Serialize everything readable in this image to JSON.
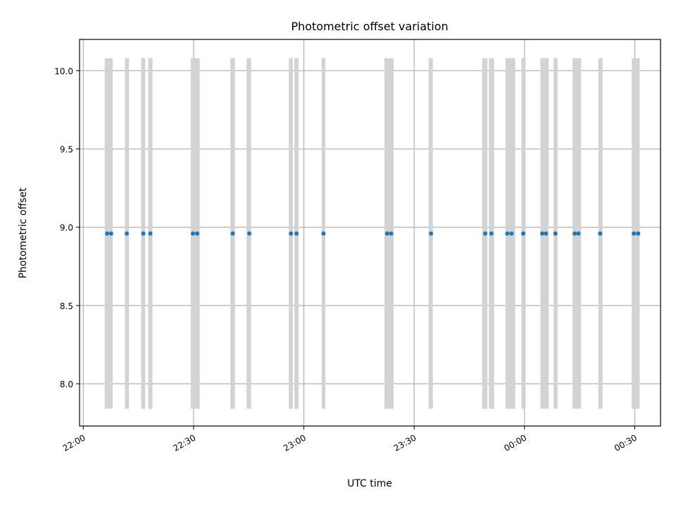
{
  "chart_data": {
    "type": "scatter",
    "title": "Photometric offset variation",
    "xlabel": "UTC time",
    "ylabel": "Photometric offset",
    "xlim": [
      "2023-01-01T21:59:00",
      "2023-01-02T00:37:00"
    ],
    "ylim": [
      7.73,
      10.2
    ],
    "x_ticks": [
      {
        "value": "2023-01-01T22:00:00",
        "label": "22:00"
      },
      {
        "value": "2023-01-01T22:30:00",
        "label": "22:30"
      },
      {
        "value": "2023-01-01T23:00:00",
        "label": "23:00"
      },
      {
        "value": "2023-01-01T23:30:00",
        "label": "23:30"
      },
      {
        "value": "2023-01-02T00:00:00",
        "label": "00:00"
      },
      {
        "value": "2023-01-02T00:30:00",
        "label": "00:30"
      }
    ],
    "y_ticks": [
      {
        "value": 8.0,
        "label": "8.0"
      },
      {
        "value": 8.5,
        "label": "8.5"
      },
      {
        "value": 9.0,
        "label": "9.0"
      },
      {
        "value": 9.5,
        "label": "9.5"
      },
      {
        "value": 10.0,
        "label": "10.0"
      }
    ],
    "grid": true,
    "band_range": [
      7.84,
      10.08
    ],
    "band_color": "#d3d3d3",
    "point_color": "#1f77b4",
    "series": [
      {
        "values": [
          {
            "x": "2023-01-01T22:06:30",
            "y": 8.96
          },
          {
            "x": "2023-01-01T22:07:35",
            "y": 8.96
          },
          {
            "x": "2023-01-01T22:11:50",
            "y": 8.96
          },
          {
            "x": "2023-01-01T22:16:20",
            "y": 8.96
          },
          {
            "x": "2023-01-01T22:18:15",
            "y": 8.96
          },
          {
            "x": "2023-01-01T22:29:50",
            "y": 8.96
          },
          {
            "x": "2023-01-01T22:31:00",
            "y": 8.96
          },
          {
            "x": "2023-01-01T22:40:40",
            "y": 8.96
          },
          {
            "x": "2023-01-01T22:45:10",
            "y": 8.96
          },
          {
            "x": "2023-01-01T22:56:30",
            "y": 8.96
          },
          {
            "x": "2023-01-01T22:58:00",
            "y": 8.96
          },
          {
            "x": "2023-01-01T23:05:20",
            "y": 8.96
          },
          {
            "x": "2023-01-01T23:22:40",
            "y": 8.96
          },
          {
            "x": "2023-01-01T23:23:45",
            "y": 8.96
          },
          {
            "x": "2023-01-01T23:34:35",
            "y": 8.96
          },
          {
            "x": "2023-01-01T23:49:20",
            "y": 8.96
          },
          {
            "x": "2023-01-01T23:51:00",
            "y": 8.96
          },
          {
            "x": "2023-01-01T23:55:20",
            "y": 8.96
          },
          {
            "x": "2023-01-01T23:56:30",
            "y": 8.96
          },
          {
            "x": "2023-01-01T23:59:40",
            "y": 8.96
          },
          {
            "x": "2023-01-02T00:04:50",
            "y": 8.96
          },
          {
            "x": "2023-01-02T00:05:50",
            "y": 8.96
          },
          {
            "x": "2023-01-02T00:08:25",
            "y": 8.96
          },
          {
            "x": "2023-01-02T00:13:40",
            "y": 8.96
          },
          {
            "x": "2023-01-02T00:14:40",
            "y": 8.96
          },
          {
            "x": "2023-01-02T00:20:35",
            "y": 8.96
          },
          {
            "x": "2023-01-02T00:29:45",
            "y": 8.96
          },
          {
            "x": "2023-01-02T00:30:55",
            "y": 8.96
          }
        ]
      }
    ],
    "bands": [
      {
        "start": "2023-01-01T22:05:50",
        "end": "2023-01-01T22:08:00"
      },
      {
        "start": "2023-01-01T22:11:20",
        "end": "2023-01-01T22:12:25"
      },
      {
        "start": "2023-01-01T22:15:45",
        "end": "2023-01-01T22:16:50"
      },
      {
        "start": "2023-01-01T22:17:40",
        "end": "2023-01-01T22:18:50"
      },
      {
        "start": "2023-01-01T22:29:15",
        "end": "2023-01-01T22:31:40"
      },
      {
        "start": "2023-01-01T22:40:00",
        "end": "2023-01-01T22:41:15"
      },
      {
        "start": "2023-01-01T22:44:25",
        "end": "2023-01-01T22:45:40"
      },
      {
        "start": "2023-01-01T22:55:55",
        "end": "2023-01-01T22:57:00"
      },
      {
        "start": "2023-01-01T22:57:25",
        "end": "2023-01-01T22:58:35"
      },
      {
        "start": "2023-01-01T23:04:50",
        "end": "2023-01-01T23:05:50"
      },
      {
        "start": "2023-01-01T23:21:55",
        "end": "2023-01-01T23:24:25"
      },
      {
        "start": "2023-01-01T23:33:55",
        "end": "2023-01-01T23:35:05"
      },
      {
        "start": "2023-01-01T23:48:30",
        "end": "2023-01-01T23:49:55"
      },
      {
        "start": "2023-01-01T23:50:20",
        "end": "2023-01-01T23:51:45"
      },
      {
        "start": "2023-01-01T23:54:50",
        "end": "2023-01-01T23:57:30"
      },
      {
        "start": "2023-01-01T23:59:10",
        "end": "2023-01-02T00:00:20"
      },
      {
        "start": "2023-01-02T00:04:20",
        "end": "2023-01-02T00:06:35"
      },
      {
        "start": "2023-01-02T00:07:55",
        "end": "2023-01-02T00:09:00"
      },
      {
        "start": "2023-01-02T00:13:05",
        "end": "2023-01-02T00:15:25"
      },
      {
        "start": "2023-01-02T00:20:05",
        "end": "2023-01-02T00:21:15"
      },
      {
        "start": "2023-01-02T00:29:10",
        "end": "2023-01-02T00:31:20"
      }
    ]
  }
}
